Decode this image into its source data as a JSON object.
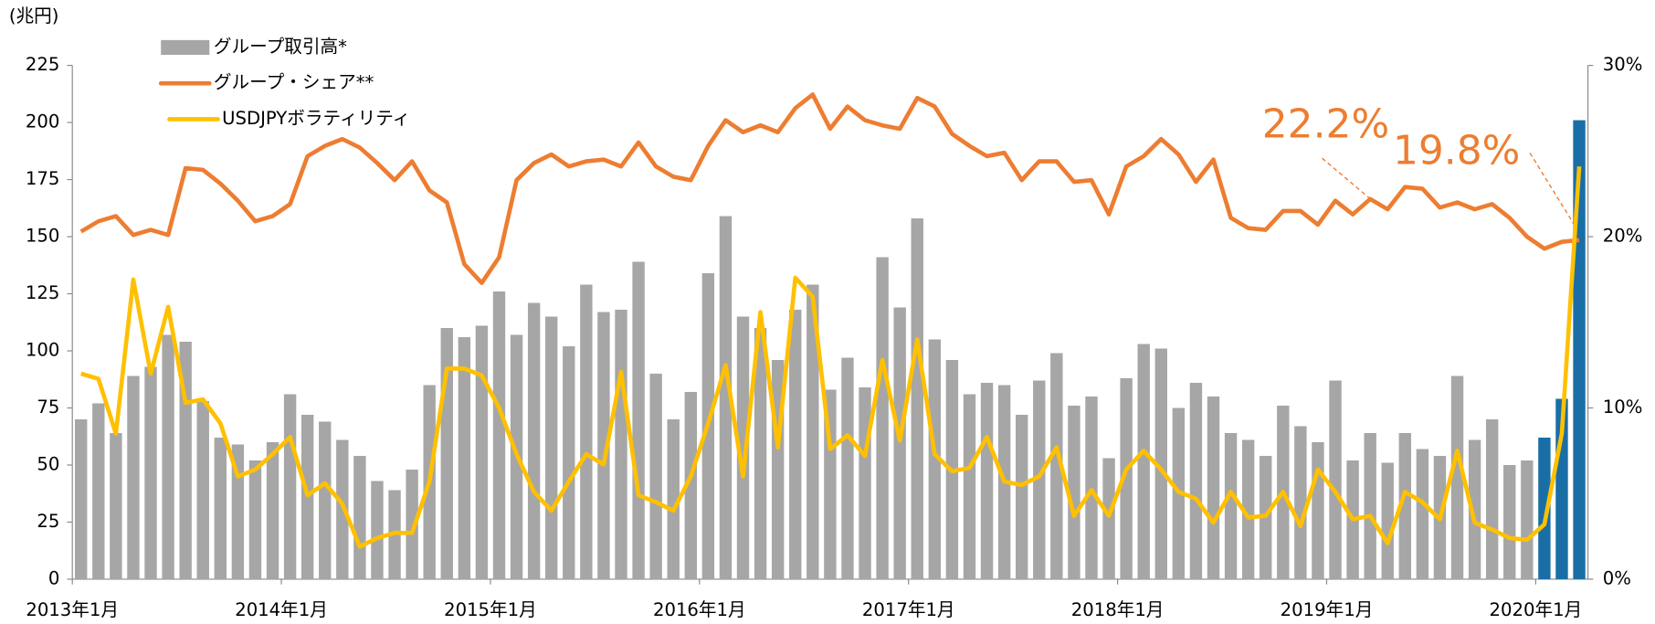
{
  "chart_data": {
    "type": "bar_line",
    "y_label": "(兆円)",
    "categories": [
      "2013年1月",
      null,
      null,
      null,
      null,
      null,
      null,
      null,
      null,
      null,
      null,
      null,
      "2014年1月",
      null,
      null,
      null,
      null,
      null,
      null,
      null,
      null,
      null,
      null,
      null,
      "2015年1月",
      null,
      null,
      null,
      null,
      null,
      null,
      null,
      null,
      null,
      null,
      null,
      "2016年1月",
      null,
      null,
      null,
      null,
      null,
      null,
      null,
      null,
      null,
      null,
      null,
      "2017年1月",
      null,
      null,
      null,
      null,
      null,
      null,
      null,
      null,
      null,
      null,
      null,
      "2018年1月",
      null,
      null,
      null,
      null,
      null,
      null,
      null,
      null,
      null,
      null,
      null,
      "2019年1月",
      null,
      null,
      null,
      null,
      null,
      null,
      null,
      null,
      null,
      null,
      null,
      "2020年1月",
      null,
      null
    ],
    "series": [
      {
        "name": "グループ取引高*",
        "type": "bar",
        "color": "#a6a6a6",
        "colors": [
          "#a6a6a6",
          "#a6a6a6",
          "#a6a6a6",
          "#a6a6a6",
          "#a6a6a6",
          "#a6a6a6",
          "#a6a6a6",
          "#a6a6a6",
          "#a6a6a6",
          "#a6a6a6",
          "#a6a6a6",
          "#a6a6a6",
          "#a6a6a6",
          "#a6a6a6",
          "#a6a6a6",
          "#a6a6a6",
          "#a6a6a6",
          "#a6a6a6",
          "#a6a6a6",
          "#a6a6a6",
          "#a6a6a6",
          "#a6a6a6",
          "#a6a6a6",
          "#a6a6a6",
          "#a6a6a6",
          "#a6a6a6",
          "#a6a6a6",
          "#a6a6a6",
          "#a6a6a6",
          "#a6a6a6",
          "#a6a6a6",
          "#a6a6a6",
          "#a6a6a6",
          "#a6a6a6",
          "#a6a6a6",
          "#a6a6a6",
          "#a6a6a6",
          "#a6a6a6",
          "#a6a6a6",
          "#a6a6a6",
          "#a6a6a6",
          "#a6a6a6",
          "#a6a6a6",
          "#a6a6a6",
          "#a6a6a6",
          "#a6a6a6",
          "#a6a6a6",
          "#a6a6a6",
          "#a6a6a6",
          "#a6a6a6",
          "#a6a6a6",
          "#a6a6a6",
          "#a6a6a6",
          "#a6a6a6",
          "#a6a6a6",
          "#a6a6a6",
          "#a6a6a6",
          "#a6a6a6",
          "#a6a6a6",
          "#a6a6a6",
          "#a6a6a6",
          "#a6a6a6",
          "#a6a6a6",
          "#a6a6a6",
          "#a6a6a6",
          "#a6a6a6",
          "#a6a6a6",
          "#a6a6a6",
          "#a6a6a6",
          "#a6a6a6",
          "#a6a6a6",
          "#a6a6a6",
          "#a6a6a6",
          "#a6a6a6",
          "#a6a6a6",
          "#a6a6a6",
          "#a6a6a6",
          "#a6a6a6",
          "#a6a6a6",
          "#a6a6a6",
          "#a6a6a6",
          "#a6a6a6",
          "#a6a6a6",
          "#a6a6a6",
          "#1a6ea6",
          "#1a6ea6",
          "#1a6ea6"
        ],
        "values": [
          70,
          77,
          64,
          89,
          93,
          107,
          104,
          78,
          62,
          59,
          52,
          60,
          81,
          72,
          69,
          61,
          54,
          43,
          39,
          48,
          85,
          110,
          106,
          111,
          126,
          107,
          121,
          115,
          102,
          129,
          117,
          118,
          139,
          90,
          70,
          82,
          134,
          159,
          115,
          110,
          96,
          118,
          129,
          83,
          97,
          84,
          141,
          119,
          158,
          105,
          96,
          81,
          86,
          85,
          72,
          87,
          99,
          76,
          80,
          53,
          88,
          103,
          101,
          75,
          86,
          80,
          64,
          61,
          54,
          76,
          67,
          60,
          87,
          52,
          64,
          51,
          64,
          57,
          54,
          89,
          61,
          70,
          50,
          52,
          62,
          79,
          201
        ]
      },
      {
        "name": "グループ・シェア**",
        "type": "line",
        "axis": "y2",
        "color": "#ed7d31",
        "values": [
          20.3,
          20.9,
          21.2,
          20.1,
          20.4,
          20.1,
          24.0,
          23.9,
          23.1,
          22.1,
          20.9,
          21.2,
          21.9,
          24.7,
          25.3,
          25.7,
          25.2,
          24.3,
          23.3,
          24.4,
          22.7,
          22.0,
          18.4,
          17.3,
          18.8,
          23.3,
          24.3,
          24.8,
          24.1,
          24.4,
          24.5,
          24.1,
          25.5,
          24.1,
          23.5,
          23.3,
          25.3,
          26.8,
          26.1,
          26.5,
          26.1,
          27.5,
          28.3,
          26.3,
          27.6,
          26.8,
          26.5,
          26.3,
          28.1,
          27.6,
          26.0,
          25.3,
          24.7,
          24.9,
          23.3,
          24.4,
          24.4,
          23.2,
          23.3,
          21.3,
          24.1,
          24.7,
          25.7,
          24.8,
          23.2,
          24.5,
          21.1,
          20.5,
          20.4,
          21.5,
          21.5,
          20.7,
          22.1,
          21.3,
          22.2,
          21.6,
          22.9,
          22.8,
          21.7,
          22.0,
          21.6,
          21.9,
          21.1,
          20.0,
          19.3,
          19.7,
          19.8
        ]
      },
      {
        "name": "USDJPYボラティリティ",
        "type": "line",
        "axis": "y2",
        "color": "#ffc000",
        "values": [
          12.0,
          11.7,
          8.5,
          17.5,
          12.0,
          15.9,
          10.3,
          10.5,
          9.1,
          6.0,
          6.4,
          7.3,
          8.3,
          4.9,
          5.6,
          4.4,
          1.9,
          2.4,
          2.7,
          2.7,
          5.7,
          12.3,
          12.3,
          11.9,
          10.0,
          7.3,
          5.1,
          4.0,
          5.7,
          7.3,
          6.7,
          12.1,
          4.9,
          4.5,
          4.0,
          6.0,
          9.1,
          12.5,
          6.0,
          15.6,
          7.7,
          17.6,
          16.5,
          7.6,
          8.4,
          7.2,
          12.8,
          8.1,
          14.0,
          7.3,
          6.3,
          6.5,
          8.3,
          5.7,
          5.5,
          6.0,
          7.7,
          3.7,
          5.2,
          3.7,
          6.4,
          7.5,
          6.4,
          5.1,
          4.7,
          3.3,
          5.1,
          3.6,
          3.7,
          5.1,
          3.1,
          6.4,
          5.1,
          3.5,
          3.7,
          2.1,
          5.1,
          4.5,
          3.5,
          7.5,
          3.3,
          2.9,
          2.4,
          2.3,
          3.2,
          8.5,
          24.1
        ]
      }
    ],
    "ylim": [
      0,
      225
    ],
    "yticks": [
      0,
      25,
      50,
      75,
      100,
      125,
      150,
      175,
      200,
      225
    ],
    "y2lim": [
      0,
      30
    ],
    "y2ticks": [
      {
        "value": 0,
        "label": "0%"
      },
      {
        "value": 10,
        "label": "10%"
      },
      {
        "value": 20,
        "label": "20%"
      },
      {
        "value": 30,
        "label": "30%"
      }
    ],
    "annotations": [
      "22.2%",
      "19.8%"
    ],
    "legend": "top-left"
  }
}
